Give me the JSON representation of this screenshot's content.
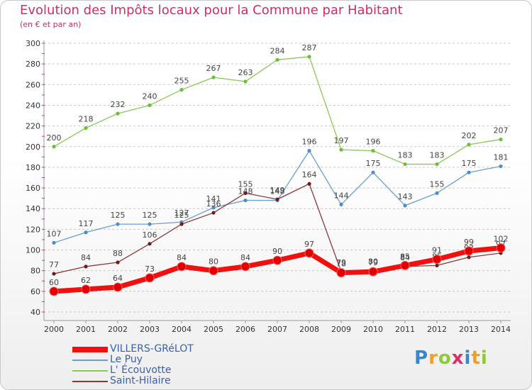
{
  "title": "Evolution des Impôts locaux pour la Commune par Habitant",
  "subtitle": "(en € et par an)",
  "brand": {
    "logo_text": "Proxiti",
    "colors": [
      "#3a86c8",
      "#f0a02a",
      "#8fc83a",
      "#d8306a"
    ]
  },
  "chart_data": {
    "type": "line",
    "title": "Evolution des Impôts locaux pour la Commune par Habitant",
    "subtitle": "(en € et par an)",
    "xlabel": "",
    "ylabel": "",
    "x": [
      "2000",
      "2001",
      "2002",
      "2003",
      "2004",
      "2005",
      "2006",
      "2007",
      "2008",
      "2009",
      "2010",
      "2011",
      "2012",
      "2013",
      "2014"
    ],
    "ylim": [
      40,
      300
    ],
    "yticks": [
      40,
      60,
      80,
      100,
      120,
      140,
      160,
      180,
      200,
      220,
      240,
      260,
      280,
      300
    ],
    "grid": "horizontal-dashed",
    "legend_position": "bottom",
    "series": [
      {
        "name": "L' Écouvotte",
        "color": "#88c95a",
        "marker": "#6dbd3a",
        "style": "thin",
        "values": [
          200,
          218,
          232,
          240,
          255,
          267,
          263,
          284,
          287,
          197,
          196,
          183,
          183,
          202,
          207
        ],
        "labels": [
          "200",
          "218",
          "232",
          "240",
          "255",
          "267",
          "263",
          "284",
          "287",
          "197",
          "196",
          "183",
          "183",
          "202",
          "207"
        ]
      },
      {
        "name": "Le Puy",
        "color": "#6a9fd0",
        "marker": "#4f8cc8",
        "style": "thin",
        "values": [
          107,
          117,
          125,
          125,
          127,
          141,
          148,
          148,
          196,
          144,
          175,
          143,
          155,
          175,
          181
        ],
        "labels": [
          "107",
          "117",
          "125",
          "125",
          "127",
          "141",
          "148",
          "148",
          "196",
          "144",
          "175",
          "143",
          "155",
          "175",
          "181"
        ]
      },
      {
        "name": "Saint-Hilaire",
        "color": "#8b3a3a",
        "marker": "#6a1e1e",
        "style": "thin",
        "values": [
          77,
          84,
          88,
          106,
          125,
          136,
          155,
          149,
          164,
          79,
          80,
          84,
          85,
          93,
          97
        ],
        "labels": [
          "77",
          "84",
          "88",
          "106",
          "125",
          "136",
          "155",
          "149",
          "164",
          "79",
          "80",
          "84",
          "85",
          "93",
          "97"
        ]
      },
      {
        "name": "VILLERS-GRéLOT",
        "color": "#f01010",
        "marker": "#e00000",
        "style": "thick",
        "values": [
          60,
          62,
          64,
          73,
          84,
          80,
          84,
          90,
          97,
          78,
          79,
          85,
          91,
          99,
          102
        ],
        "labels": [
          "60",
          "62",
          "64",
          "73",
          "84",
          "80",
          "84",
          "90",
          "97",
          "78",
          "79",
          "85",
          "91",
          "99",
          "102"
        ]
      }
    ],
    "legend_order": [
      "VILLERS-GRéLOT",
      "Le Puy",
      "L' Écouvotte",
      "Saint-Hilaire"
    ]
  }
}
